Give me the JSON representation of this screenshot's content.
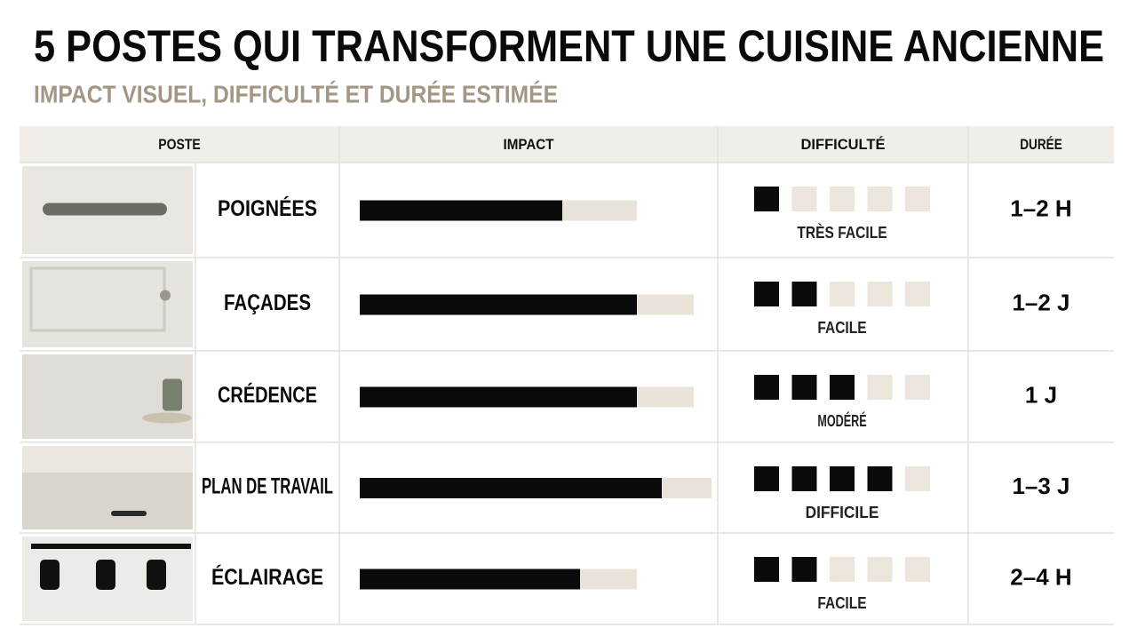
{
  "header": {
    "title": "5 POSTES QUI TRANSFORMENT UNE CUISINE ANCIENNE",
    "subtitle": "IMPACT VISUEL, DIFFICULTÉ ET DURÉE ESTIMÉE"
  },
  "table": {
    "columns": [
      "POSTE",
      "IMPACT",
      "DIFFICULTÉ",
      "DURÉE"
    ],
    "difficulty_max": 5,
    "rows": [
      {
        "poste": "POIGNÉES",
        "impact": 57,
        "impact_max": 78,
        "difficulty": 1,
        "difficulty_label": "TRÈS FACILE",
        "duree": "1–2 H"
      },
      {
        "poste": "FAÇADES",
        "impact": 78,
        "impact_max": 94,
        "difficulty": 2,
        "difficulty_label": "FACILE",
        "duree": "1–2 J"
      },
      {
        "poste": "CRÉDENCE",
        "impact": 78,
        "impact_max": 94,
        "difficulty": 3,
        "difficulty_label": "MODÉRÉ",
        "duree": "1 J"
      },
      {
        "poste": "PLAN DE TRAVAIL",
        "impact": 85,
        "impact_max": 99,
        "difficulty": 4,
        "difficulty_label": "DIFFICILE",
        "duree": "1–3 J"
      },
      {
        "poste": "ÉCLAIRAGE",
        "impact": 62,
        "impact_max": 78,
        "difficulty": 2,
        "difficulty_label": "FACILE",
        "duree": "2–4 H"
      }
    ]
  }
}
